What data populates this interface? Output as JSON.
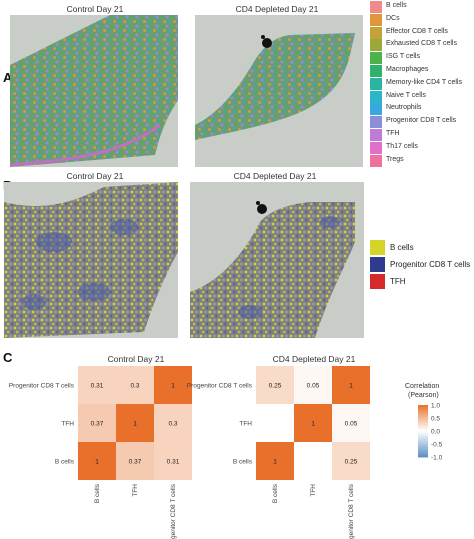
{
  "panel_letters": {
    "a": "A",
    "b": "B",
    "c": "C"
  },
  "panel_a": {
    "left_title": "Control Day 21",
    "right_title": "CD4 Depleted Day 21",
    "legend": [
      {
        "label": "B cells",
        "color": "#f08a8a"
      },
      {
        "label": "DCs",
        "color": "#e0973b"
      },
      {
        "label": "Effector CD8 T cells",
        "color": "#c4a23a"
      },
      {
        "label": "Exhausted CD8 T cells",
        "color": "#9aa83a"
      },
      {
        "label": "ISG T cells",
        "color": "#4fb04f"
      },
      {
        "label": "Macrophages",
        "color": "#2fb36a"
      },
      {
        "label": "Memory-like CD4 T cells",
        "color": "#2ab5a3"
      },
      {
        "label": "Naive T cells",
        "color": "#2bb6c8"
      },
      {
        "label": "Neutrophils",
        "color": "#3aa8e0"
      },
      {
        "label": "Progenitor CD8 T cells",
        "color": "#8b8fd8"
      },
      {
        "label": "TFH",
        "color": "#c07ad8"
      },
      {
        "label": "Th17 cells",
        "color": "#e070c8"
      },
      {
        "label": "Tregs",
        "color": "#f070a0"
      }
    ]
  },
  "panel_b": {
    "left_title": "Control Day 21",
    "right_title": "CD4 Depleted Day 21",
    "legend": [
      {
        "label": "B cells",
        "color": "#d4d42a"
      },
      {
        "label": "Progenitor CD8 T cells",
        "color": "#2e3b8f"
      },
      {
        "label": "TFH",
        "color": "#d62a2a"
      }
    ]
  },
  "chart_data": [
    {
      "type": "heatmap",
      "title": "Control Day 21",
      "x": [
        "B cells",
        "TFH",
        "Progenitor CD8 T cells"
      ],
      "y": [
        "B cells",
        "TFH",
        "Progenitor CD8 T cells"
      ],
      "values": [
        [
          1,
          0.37,
          0.31
        ],
        [
          0.37,
          1,
          0.3
        ],
        [
          0.31,
          0.3,
          1
        ]
      ],
      "cell_labels": [
        [
          "1",
          "0.37",
          "0.31"
        ],
        [
          "0.37",
          "1",
          "0.3"
        ],
        [
          "0.31",
          "0.3",
          "1"
        ]
      ]
    },
    {
      "type": "heatmap",
      "title": "CD4 Depleted Day 21",
      "x": [
        "B cells",
        "TFH",
        "Progenitor CD8 T cells"
      ],
      "y": [
        "B cells",
        "TFH",
        "Progenitor CD8 T cells"
      ],
      "values": [
        [
          1,
          0,
          0.25
        ],
        [
          0,
          1,
          0.05
        ],
        [
          0.25,
          0.05,
          1
        ]
      ],
      "cell_labels": [
        [
          "1",
          "",
          "0.25"
        ],
        [
          "",
          "1",
          "0.05"
        ],
        [
          "0.25",
          "0.05",
          "1"
        ]
      ]
    }
  ],
  "colorbar": {
    "title_line1": "Correlation",
    "title_line2": "(Pearson)",
    "ticks": [
      "1.0",
      "0.5",
      "0.0",
      "-0.5",
      "-1.0"
    ],
    "tick_values": [
      1,
      0.5,
      0,
      -0.5,
      -1
    ],
    "high_color": "#e8702a",
    "mid_color": "#ffffff",
    "low_color": "#5d8fc4"
  }
}
